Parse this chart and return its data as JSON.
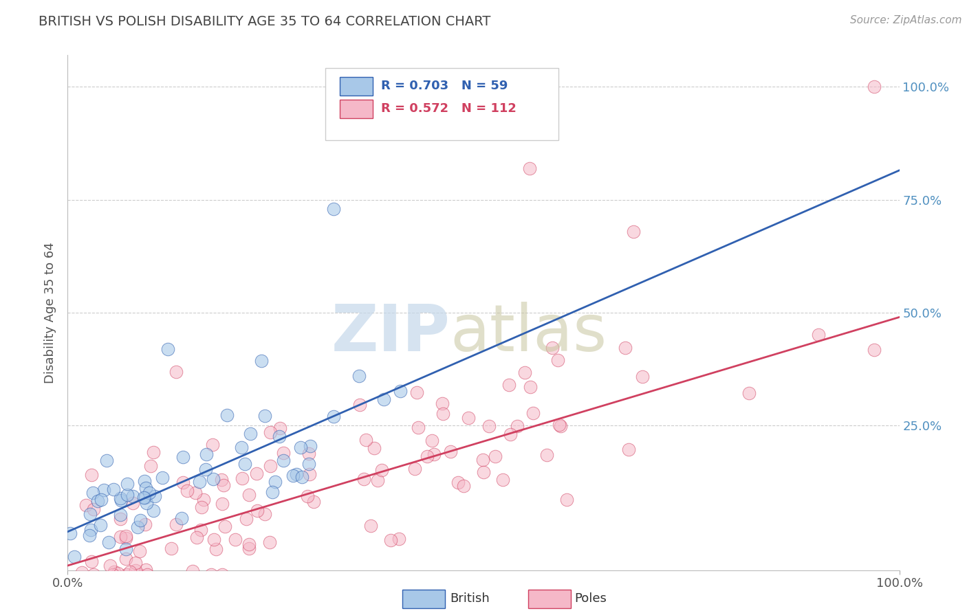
{
  "title": "BRITISH VS POLISH DISABILITY AGE 35 TO 64 CORRELATION CHART",
  "source": "Source: ZipAtlas.com",
  "ylabel": "Disability Age 35 to 64",
  "xlim": [
    0.0,
    1.0
  ],
  "ylim": [
    -0.07,
    1.07
  ],
  "ytick_labels": [
    "25.0%",
    "50.0%",
    "75.0%",
    "100.0%"
  ],
  "ytick_positions": [
    0.25,
    0.5,
    0.75,
    1.0
  ],
  "british_R": 0.703,
  "british_N": 59,
  "polish_R": 0.572,
  "polish_N": 112,
  "british_color": "#a8c8e8",
  "polish_color": "#f5b8c8",
  "british_line_color": "#3060b0",
  "polish_line_color": "#d04060",
  "watermark_zip_color": "#c5d8ea",
  "watermark_atlas_color": "#c8c5a0",
  "background_color": "#ffffff",
  "grid_color": "#cccccc",
  "title_color": "#444444",
  "axis_label_color": "#555555",
  "right_tick_color": "#5090c0",
  "british_line_intercept": 0.015,
  "british_line_slope": 0.8,
  "polish_line_intercept": -0.06,
  "polish_line_slope": 0.55
}
